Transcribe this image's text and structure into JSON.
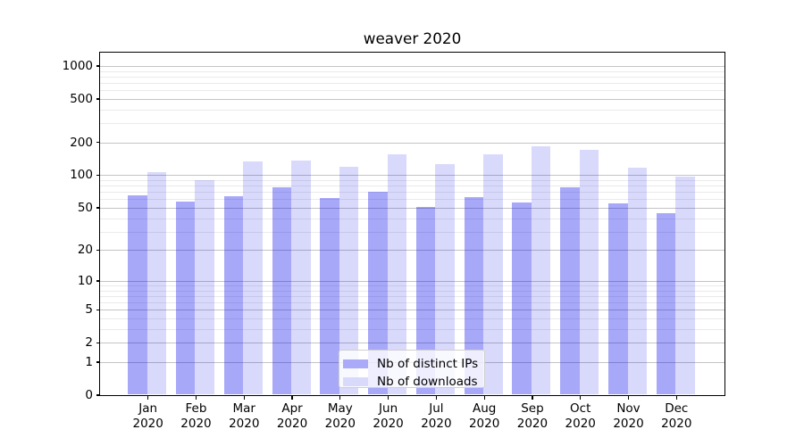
{
  "chart_data": {
    "type": "bar",
    "title": "weaver 2020",
    "categories": [
      "Jan 2020",
      "Feb 2020",
      "Mar 2020",
      "Apr 2020",
      "May 2020",
      "Jun 2020",
      "Jul 2020",
      "Aug 2020",
      "Sep 2020",
      "Oct 2020",
      "Nov 2020",
      "Dec 2020"
    ],
    "months": [
      "Jan",
      "Feb",
      "Mar",
      "Apr",
      "May",
      "Jun",
      "Jul",
      "Aug",
      "Sep",
      "Oct",
      "Nov",
      "Dec"
    ],
    "year": "2020",
    "series": [
      {
        "name": "Nb of distinct IPs",
        "legend_color": "#aaaaf9",
        "fill": "rgba(0,0,238,0.34)",
        "values": [
          65,
          57,
          63,
          76,
          61,
          70,
          50,
          62,
          56,
          76,
          54,
          44
        ]
      },
      {
        "name": "Nb of downloads",
        "legend_color": "#d9d9fc",
        "fill": "rgba(0,0,238,0.15)",
        "values": [
          105,
          90,
          133,
          134,
          118,
          154,
          126,
          153,
          184,
          168,
          117,
          97
        ]
      }
    ],
    "xlabel": "",
    "ylabel": "",
    "yscale": "log-like (symlog of 1+v, base 10)",
    "y_major_ticks": [
      0,
      1,
      2,
      5,
      10,
      20,
      50,
      100,
      200,
      500,
      1000
    ],
    "y_minor_gridlines": [
      3,
      4,
      6,
      7,
      8,
      9,
      30,
      40,
      60,
      70,
      80,
      90,
      300,
      400,
      600,
      700,
      800,
      900
    ],
    "ylim": [
      0,
      1330
    ],
    "grid": true,
    "legend_position": "inside plot, lower center",
    "colors": {
      "major_grid": "#c4c4c4",
      "minor_grid": "#eaeaea",
      "axis": "#000000",
      "background": "#ffffff"
    }
  }
}
